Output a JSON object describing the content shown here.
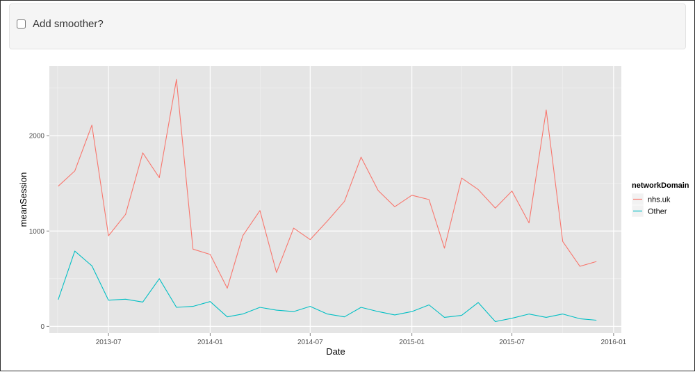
{
  "controls": {
    "smoother_label": "Add smoother?",
    "smoother_checked": false
  },
  "chart_data": {
    "type": "line",
    "xlabel": "Date",
    "ylabel": "meanSession",
    "x_range": [
      "2013-03-16",
      "2016-01-15"
    ],
    "ylim": [
      -70,
      2730
    ],
    "x_ticks": [
      {
        "date": "2013-07-01",
        "label": "2013-07"
      },
      {
        "date": "2014-01-01",
        "label": "2014-01"
      },
      {
        "date": "2014-07-01",
        "label": "2014-07"
      },
      {
        "date": "2015-01-01",
        "label": "2015-01"
      },
      {
        "date": "2015-07-01",
        "label": "2015-07"
      },
      {
        "date": "2016-01-01",
        "label": "2016-01"
      }
    ],
    "y_ticks": [
      0,
      1000,
      2000
    ],
    "grid": true,
    "legend": {
      "title": "networkDomain",
      "position": "right"
    },
    "x": [
      "2013-04-01",
      "2013-05-01",
      "2013-06-01",
      "2013-07-01",
      "2013-08-01",
      "2013-09-01",
      "2013-10-01",
      "2013-11-01",
      "2013-12-01",
      "2014-01-01",
      "2014-02-01",
      "2014-03-01",
      "2014-04-01",
      "2014-05-01",
      "2014-06-01",
      "2014-07-01",
      "2014-08-01",
      "2014-09-01",
      "2014-10-01",
      "2014-11-01",
      "2014-12-01",
      "2015-01-01",
      "2015-02-01",
      "2015-03-01",
      "2015-04-01",
      "2015-05-01",
      "2015-06-01",
      "2015-07-01",
      "2015-08-01",
      "2015-09-01",
      "2015-10-01",
      "2015-11-01",
      "2015-12-01"
    ],
    "series": [
      {
        "name": "nhs.uk",
        "color": "#F8766D",
        "values": [
          1470,
          1630,
          2110,
          950,
          1175,
          1820,
          1560,
          2590,
          810,
          755,
          400,
          950,
          1215,
          565,
          1030,
          910,
          1105,
          1310,
          1775,
          1425,
          1255,
          1375,
          1330,
          820,
          1555,
          1435,
          1240,
          1420,
          1085,
          2270,
          890,
          630,
          680
        ]
      },
      {
        "name": "Other",
        "color": "#00BFC4",
        "values": [
          280,
          790,
          635,
          275,
          285,
          255,
          500,
          200,
          210,
          260,
          100,
          130,
          200,
          170,
          155,
          210,
          130,
          100,
          200,
          155,
          120,
          155,
          225,
          95,
          115,
          250,
          50,
          85,
          130,
          95,
          130,
          80,
          65
        ]
      }
    ]
  }
}
